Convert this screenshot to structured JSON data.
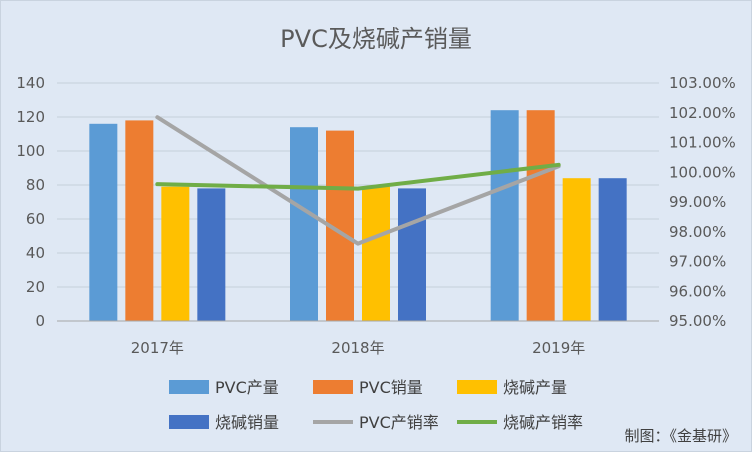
{
  "chart_data": {
    "type": "bar",
    "title": "PVC及烧碱产销量",
    "categories": [
      "2017年",
      "2018年",
      "2019年"
    ],
    "series": [
      {
        "name": "PVC产量",
        "axis": "left",
        "color": "#5b9bd5",
        "values": [
          116,
          114,
          124
        ]
      },
      {
        "name": "PVC销量",
        "axis": "left",
        "color": "#ed7d31",
        "values": [
          118,
          112,
          124
        ]
      },
      {
        "name": "烧碱产量",
        "axis": "left",
        "color": "#ffc000",
        "values": [
          79,
          79,
          84
        ]
      },
      {
        "name": "烧碱销量",
        "axis": "left",
        "color": "#4472c4",
        "values": [
          78,
          78,
          84
        ]
      }
    ],
    "line_series": [
      {
        "name": "PVC产销率",
        "axis": "right",
        "color": "#a5a5a5",
        "values": [
          101.85,
          97.6,
          100.2
        ]
      },
      {
        "name": "烧碱产销率",
        "axis": "right",
        "color": "#70ad47",
        "values": [
          99.6,
          99.45,
          100.25
        ]
      }
    ],
    "y_left": {
      "min": 0,
      "max": 140,
      "step": 20,
      "ticks": [
        "0",
        "20",
        "40",
        "60",
        "80",
        "100",
        "120",
        "140"
      ]
    },
    "y_right": {
      "min": 95,
      "max": 103,
      "step": 1,
      "ticks": [
        "95.00%",
        "96.00%",
        "97.00%",
        "98.00%",
        "99.00%",
        "100.00%",
        "101.00%",
        "102.00%",
        "103.00%"
      ]
    },
    "grid": true,
    "legend_position": "bottom"
  },
  "credit": "制图：《金基研》"
}
